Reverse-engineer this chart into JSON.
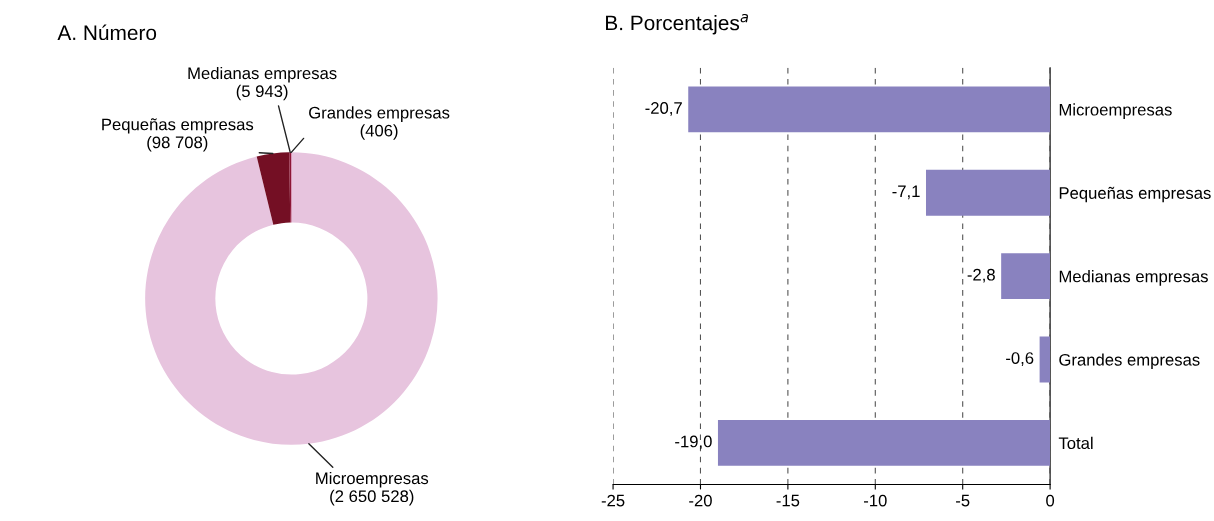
{
  "chart_data": [
    {
      "type": "donut",
      "title": "A. Número",
      "categories": [
        "Microempresas",
        "Pequeñas empresas",
        "Medianas empresas",
        "Grandes empresas"
      ],
      "value_labels": [
        "(2 650 528)",
        "(98 708)",
        "(5 943)",
        "(406)"
      ],
      "values": [
        2650528,
        98708,
        5943,
        406
      ],
      "colors": [
        "#e7c4de",
        "#740f24",
        "#8c1535",
        "#e0187a"
      ]
    },
    {
      "type": "bar",
      "orientation": "horizontal",
      "title": "B. Porcentajes$^{a}$",
      "categories": [
        "Microempresas",
        "Pequeñas empresas",
        "Medianas empresas",
        "Grandes empresas",
        "Total"
      ],
      "values": [
        -20.7,
        -7.1,
        -2.8,
        -0.6,
        -19.0
      ],
      "value_labels": [
        "-20,7",
        "-7,1",
        "-2,8",
        "-0,6",
        "-19,0"
      ],
      "color": "#8982bf",
      "xlim": [
        -25,
        0
      ],
      "xticks": [
        -25,
        -20,
        -15,
        -10,
        -5,
        0
      ],
      "grid": "x"
    }
  ]
}
